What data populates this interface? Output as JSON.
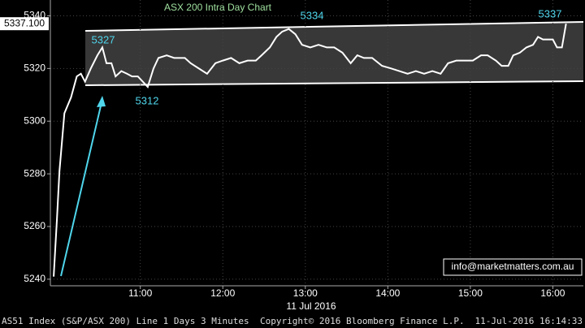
{
  "chart_data": {
    "type": "line",
    "title": "ASX 200 Intra Day Chart",
    "x": [
      9.95,
      9.99,
      10.02,
      10.08,
      10.16,
      10.23,
      10.28,
      10.33,
      10.4,
      10.48,
      10.54,
      10.59,
      10.65,
      10.7,
      10.77,
      10.84,
      10.9,
      10.97,
      11.03,
      11.09,
      11.16,
      11.22,
      11.32,
      11.41,
      11.54,
      11.61,
      11.71,
      11.81,
      11.91,
      12.0,
      12.1,
      12.2,
      12.3,
      12.4,
      12.47,
      12.57,
      12.65,
      12.72,
      12.8,
      12.88,
      12.96,
      13.06,
      13.16,
      13.26,
      13.35,
      13.45,
      13.55,
      13.63,
      13.71,
      13.81,
      13.93,
      14.04,
      14.14,
      14.24,
      14.34,
      14.44,
      14.54,
      14.64,
      14.73,
      14.83,
      14.93,
      15.03,
      15.13,
      15.21,
      15.31,
      15.38,
      15.46,
      15.52,
      15.6,
      15.68,
      15.76,
      15.82,
      15.88,
      15.94,
      16.0,
      16.05,
      16.11,
      16.16
    ],
    "values": [
      5241,
      5263,
      5281,
      5303,
      5309,
      5317,
      5318,
      5315,
      5320,
      5325,
      5328,
      5322,
      5322,
      5317,
      5319,
      5318,
      5317,
      5317,
      5315,
      5313,
      5320,
      5324,
      5325,
      5324,
      5324,
      5322,
      5320,
      5318,
      5322,
      5323,
      5324,
      5322,
      5323,
      5323,
      5325,
      5328,
      5332,
      5334,
      5335,
      5333,
      5329,
      5328,
      5329,
      5328,
      5328,
      5326,
      5322,
      5325,
      5324,
      5324,
      5321,
      5320,
      5319,
      5318,
      5319,
      5318,
      5319,
      5318,
      5322,
      5323,
      5323,
      5323,
      5325,
      5325,
      5323,
      5321,
      5321,
      5325,
      5326,
      5328,
      5329,
      5332,
      5331,
      5331,
      5331,
      5328,
      5328,
      5337
    ],
    "color": "#ffffff",
    "xlim": [
      9.91,
      16.37
    ],
    "xticks": [
      {
        "value": 11,
        "label": "11:00"
      },
      {
        "value": 12,
        "label": "12:00"
      },
      {
        "value": 13,
        "label": "13:00"
      },
      {
        "value": 14,
        "label": "14:00"
      },
      {
        "value": 15,
        "label": "15:00"
      },
      {
        "value": 16,
        "label": "16:00"
      }
    ],
    "x_axis_label": "11 Jul 2016",
    "ylim": [
      5237.5,
      5346
    ],
    "yticks": [
      5240,
      5260,
      5280,
      5300,
      5320,
      5340
    ],
    "grid": true,
    "last_value_label": "5337.100",
    "annotations": [
      "5327",
      "5312",
      "5334",
      "5337"
    ],
    "watermark": "info@marketmatters.com.au",
    "footer": {
      "security": "AS51 Index (S&P/ASX 200) Line 1 Days 3 Minutes",
      "copyright": "Copyright© 2016 Bloomberg Finance L.P.",
      "timestamp": "11-Jul-2016 16:14:33"
    }
  }
}
